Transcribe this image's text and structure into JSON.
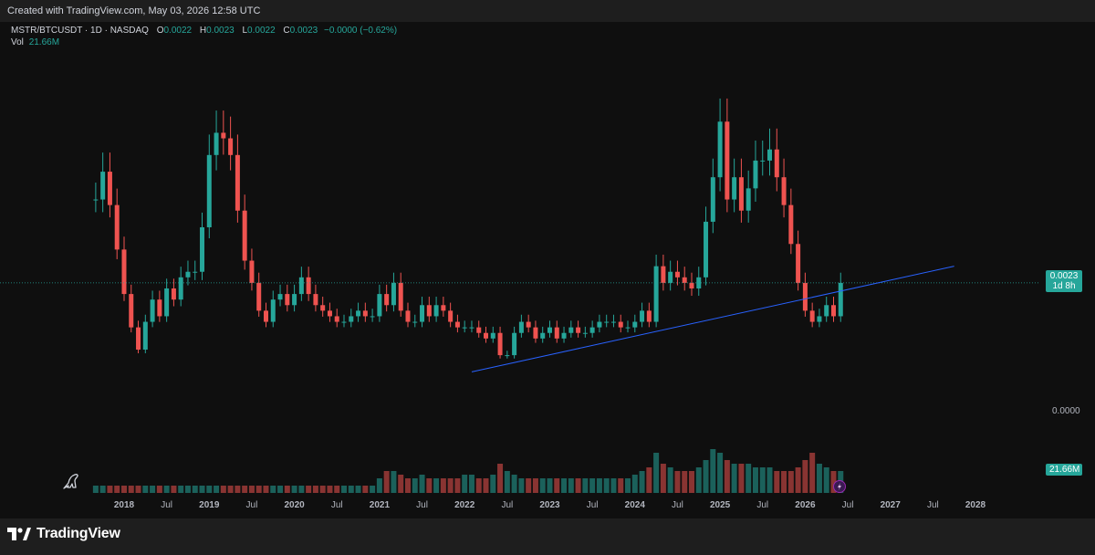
{
  "header": {
    "created_text": "Created with TradingView.com, May 03, 2026 12:58 UTC"
  },
  "legend": {
    "symbol": "MSTR/BTCUSDT · 1D · NASDAQ",
    "open_label": "O",
    "open": "0.0022",
    "high_label": "H",
    "high": "0.0023",
    "low_label": "L",
    "low": "0.0022",
    "close_label": "C",
    "close": "0.0023",
    "change": "−0.0000 (−0.62%)",
    "vol_label": "Vol",
    "vol": "21.66M"
  },
  "price_axis": {
    "last_price": "0.0023",
    "countdown": "1d 8h",
    "zero_label": "0.0000",
    "vol_badge": "21.66M"
  },
  "footer": {
    "brand": "TradingView",
    "logo_icon": "tradingview-logo-icon"
  },
  "colors": {
    "up": "#26a69a",
    "down": "#ef5350",
    "trendline": "#2962ff",
    "background": "#0f0f0f"
  },
  "chart_data": {
    "type": "line",
    "title": "MSTR/BTCUSDT · 1D · NASDAQ",
    "xlabel": "",
    "ylabel": "",
    "x_ticks": [
      "2018",
      "Jul",
      "2019",
      "Jul",
      "2020",
      "Jul",
      "2021",
      "Jul",
      "2022",
      "Jul",
      "2023",
      "Jul",
      "2024",
      "Jul",
      "2025",
      "Jul",
      "2026",
      "Jul",
      "2027",
      "Jul",
      "2028"
    ],
    "y_ticks": [
      "0.0000",
      "0.0023"
    ],
    "xlim": [
      "2017-08",
      "2028-06"
    ],
    "ylim": [
      0,
      0.0066
    ],
    "last_price": 0.0023,
    "grid": false,
    "series": [
      {
        "x": [
          "2017-08",
          "2017-09",
          "2017-10",
          "2017-11",
          "2017-12",
          "2018-01",
          "2018-02",
          "2018-03",
          "2018-04",
          "2018-05",
          "2018-06",
          "2018-07",
          "2018-08",
          "2018-09",
          "2018-10",
          "2018-11",
          "2018-12",
          "2019-01",
          "2019-02",
          "2019-03",
          "2019-04",
          "2019-05",
          "2019-06",
          "2019-07",
          "2019-08",
          "2019-09",
          "2019-10",
          "2019-11",
          "2019-12",
          "2020-01",
          "2020-02",
          "2020-03",
          "2020-04",
          "2020-05",
          "2020-06",
          "2020-07",
          "2020-08",
          "2020-09",
          "2020-10",
          "2020-11",
          "2020-12",
          "2021-01",
          "2021-02",
          "2021-03",
          "2021-04",
          "2021-05",
          "2021-06",
          "2021-07",
          "2021-08",
          "2021-09",
          "2021-10",
          "2021-11",
          "2021-12",
          "2022-01",
          "2022-02",
          "2022-03",
          "2022-04",
          "2022-05",
          "2022-06",
          "2022-07",
          "2022-08",
          "2022-09",
          "2022-10",
          "2022-11",
          "2022-12",
          "2023-01",
          "2023-02",
          "2023-03",
          "2023-04",
          "2023-05",
          "2023-06",
          "2023-07",
          "2023-08",
          "2023-09",
          "2023-10",
          "2023-11",
          "2023-12",
          "2024-01",
          "2024-02",
          "2024-03",
          "2024-04",
          "2024-05",
          "2024-06",
          "2024-07",
          "2024-08",
          "2024-09",
          "2024-10",
          "2024-11",
          "2024-12",
          "2025-01",
          "2025-02",
          "2025-03",
          "2025-04",
          "2025-05",
          "2025-06",
          "2025-07",
          "2025-08",
          "2025-09",
          "2025-10",
          "2025-11",
          "2025-12",
          "2026-01",
          "2026-02",
          "2026-03",
          "2026-04",
          "2026-05"
        ],
        "values": [
          0.0038,
          0.0043,
          0.0037,
          0.0029,
          0.0021,
          0.0015,
          0.0011,
          0.0016,
          0.002,
          0.0017,
          0.0022,
          0.002,
          0.0024,
          0.0025,
          0.0025,
          0.0033,
          0.0046,
          0.005,
          0.0049,
          0.0046,
          0.0036,
          0.0027,
          0.0023,
          0.0018,
          0.0016,
          0.002,
          0.0021,
          0.0019,
          0.0021,
          0.0024,
          0.0021,
          0.0019,
          0.0018,
          0.0017,
          0.0016,
          0.0016,
          0.0017,
          0.0018,
          0.0017,
          0.0017,
          0.0021,
          0.0019,
          0.0023,
          0.0018,
          0.0016,
          0.0016,
          0.0019,
          0.0017,
          0.0019,
          0.0018,
          0.0016,
          0.0015,
          0.0015,
          0.0015,
          0.0014,
          0.0013,
          0.0014,
          0.001,
          0.001,
          0.0014,
          0.0016,
          0.0015,
          0.0013,
          0.0014,
          0.0015,
          0.0013,
          0.0014,
          0.0015,
          0.0014,
          0.0014,
          0.0015,
          0.0016,
          0.0016,
          0.0016,
          0.0015,
          0.0015,
          0.0016,
          0.0018,
          0.0016,
          0.0026,
          0.0023,
          0.0025,
          0.0024,
          0.0023,
          0.0022,
          0.0024,
          0.0034,
          0.0042,
          0.0052,
          0.0038,
          0.0042,
          0.0036,
          0.004,
          0.0045,
          0.0045,
          0.0047,
          0.0042,
          0.0037,
          0.003,
          0.0023,
          0.0018,
          0.0016,
          0.0017,
          0.0019,
          0.0017,
          0.0023
        ]
      }
    ],
    "trendline": {
      "x": [
        "2022-01",
        "2027-09"
      ],
      "y": [
        0.0007,
        0.0026
      ]
    },
    "volume": {
      "values": [
        0.1,
        0.1,
        0.1,
        0.1,
        0.1,
        0.1,
        0.1,
        0.1,
        0.1,
        0.1,
        0.1,
        0.1,
        0.1,
        0.1,
        0.1,
        0.1,
        0.1,
        0.1,
        0.1,
        0.1,
        0.1,
        0.1,
        0.1,
        0.1,
        0.1,
        0.1,
        0.1,
        0.1,
        0.1,
        0.1,
        0.1,
        0.1,
        0.1,
        0.1,
        0.1,
        0.1,
        0.1,
        0.1,
        0.1,
        0.1,
        0.2,
        0.3,
        0.3,
        0.25,
        0.2,
        0.2,
        0.25,
        0.2,
        0.2,
        0.2,
        0.2,
        0.2,
        0.25,
        0.25,
        0.2,
        0.2,
        0.25,
        0.4,
        0.3,
        0.25,
        0.2,
        0.2,
        0.2,
        0.2,
        0.2,
        0.2,
        0.2,
        0.2,
        0.2,
        0.2,
        0.2,
        0.2,
        0.2,
        0.2,
        0.2,
        0.2,
        0.25,
        0.3,
        0.35,
        0.55,
        0.4,
        0.35,
        0.3,
        0.3,
        0.3,
        0.35,
        0.45,
        0.6,
        0.55,
        0.45,
        0.4,
        0.4,
        0.4,
        0.35,
        0.35,
        0.35,
        0.3,
        0.3,
        0.3,
        0.35,
        0.45,
        0.55,
        0.4,
        0.35,
        0.3,
        0.3
      ]
    }
  }
}
